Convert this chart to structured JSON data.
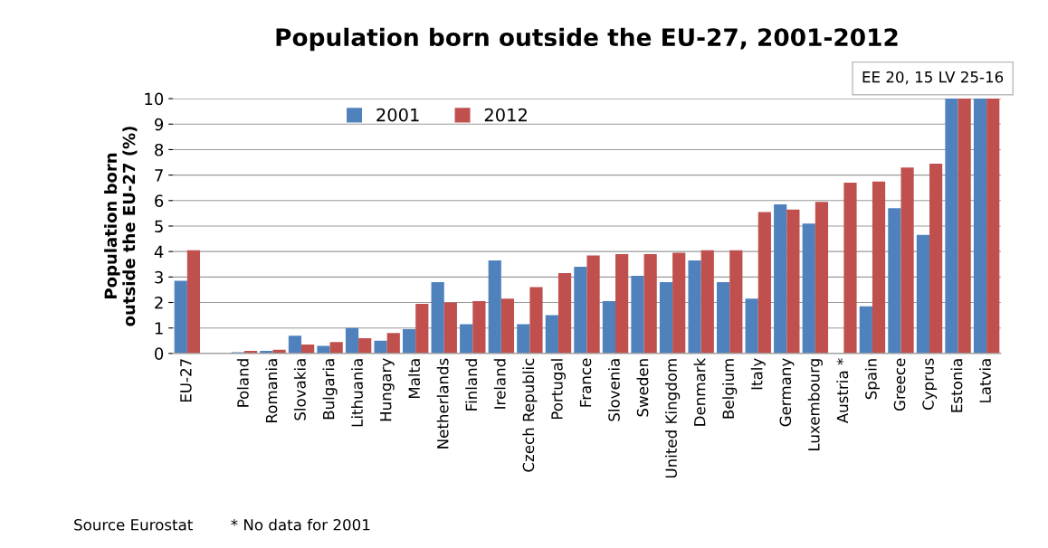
{
  "chart_data": {
    "type": "bar",
    "title": "Population born outside the EU-27, 2001-2012",
    "ylabel": "Population born\noutside the EU-27 (%)",
    "categories": [
      "EU-27",
      null,
      "Poland",
      "Romania",
      "Slovakia",
      "Bulgaria",
      "Lithuania",
      "Hungary",
      "Malta",
      "Netherlands",
      "Finland",
      "Ireland",
      "Czech Republic",
      "Portugal",
      "France",
      "Slovenia",
      "Sweden",
      "United Kingdom",
      "Denmark",
      "Belgium",
      "Italy",
      "Germany",
      "Luxembourg",
      "Austria *",
      "Spain",
      "Greece",
      "Cyprus",
      "Estonia",
      "Latvia"
    ],
    "series": [
      {
        "name": "2001",
        "color": "#4f81bd",
        "values": [
          2.85,
          null,
          0.05,
          0.1,
          0.7,
          0.3,
          1.0,
          0.5,
          0.95,
          2.8,
          1.15,
          3.65,
          1.15,
          1.5,
          3.4,
          2.05,
          3.05,
          2.8,
          3.65,
          2.8,
          2.15,
          5.85,
          5.1,
          null,
          1.85,
          5.7,
          4.65,
          10,
          10
        ]
      },
      {
        "name": "2012",
        "color": "#c0504d",
        "values": [
          4.05,
          null,
          0.1,
          0.15,
          0.35,
          0.45,
          0.6,
          0.8,
          1.95,
          2.0,
          2.05,
          2.15,
          2.6,
          3.15,
          3.85,
          3.9,
          3.9,
          3.95,
          4.05,
          4.05,
          5.55,
          5.65,
          5.95,
          6.7,
          6.75,
          7.3,
          7.45,
          10,
          10
        ]
      }
    ],
    "ylim": [
      0,
      10
    ],
    "yticks": [
      0,
      1,
      2,
      3,
      4,
      5,
      6,
      7,
      8,
      9,
      10
    ],
    "grid": "y",
    "legend": "top",
    "annotations": [
      "EE 20, 15 LV 25-16",
      "Source Eurostat",
      "* No data for 2001"
    ]
  }
}
